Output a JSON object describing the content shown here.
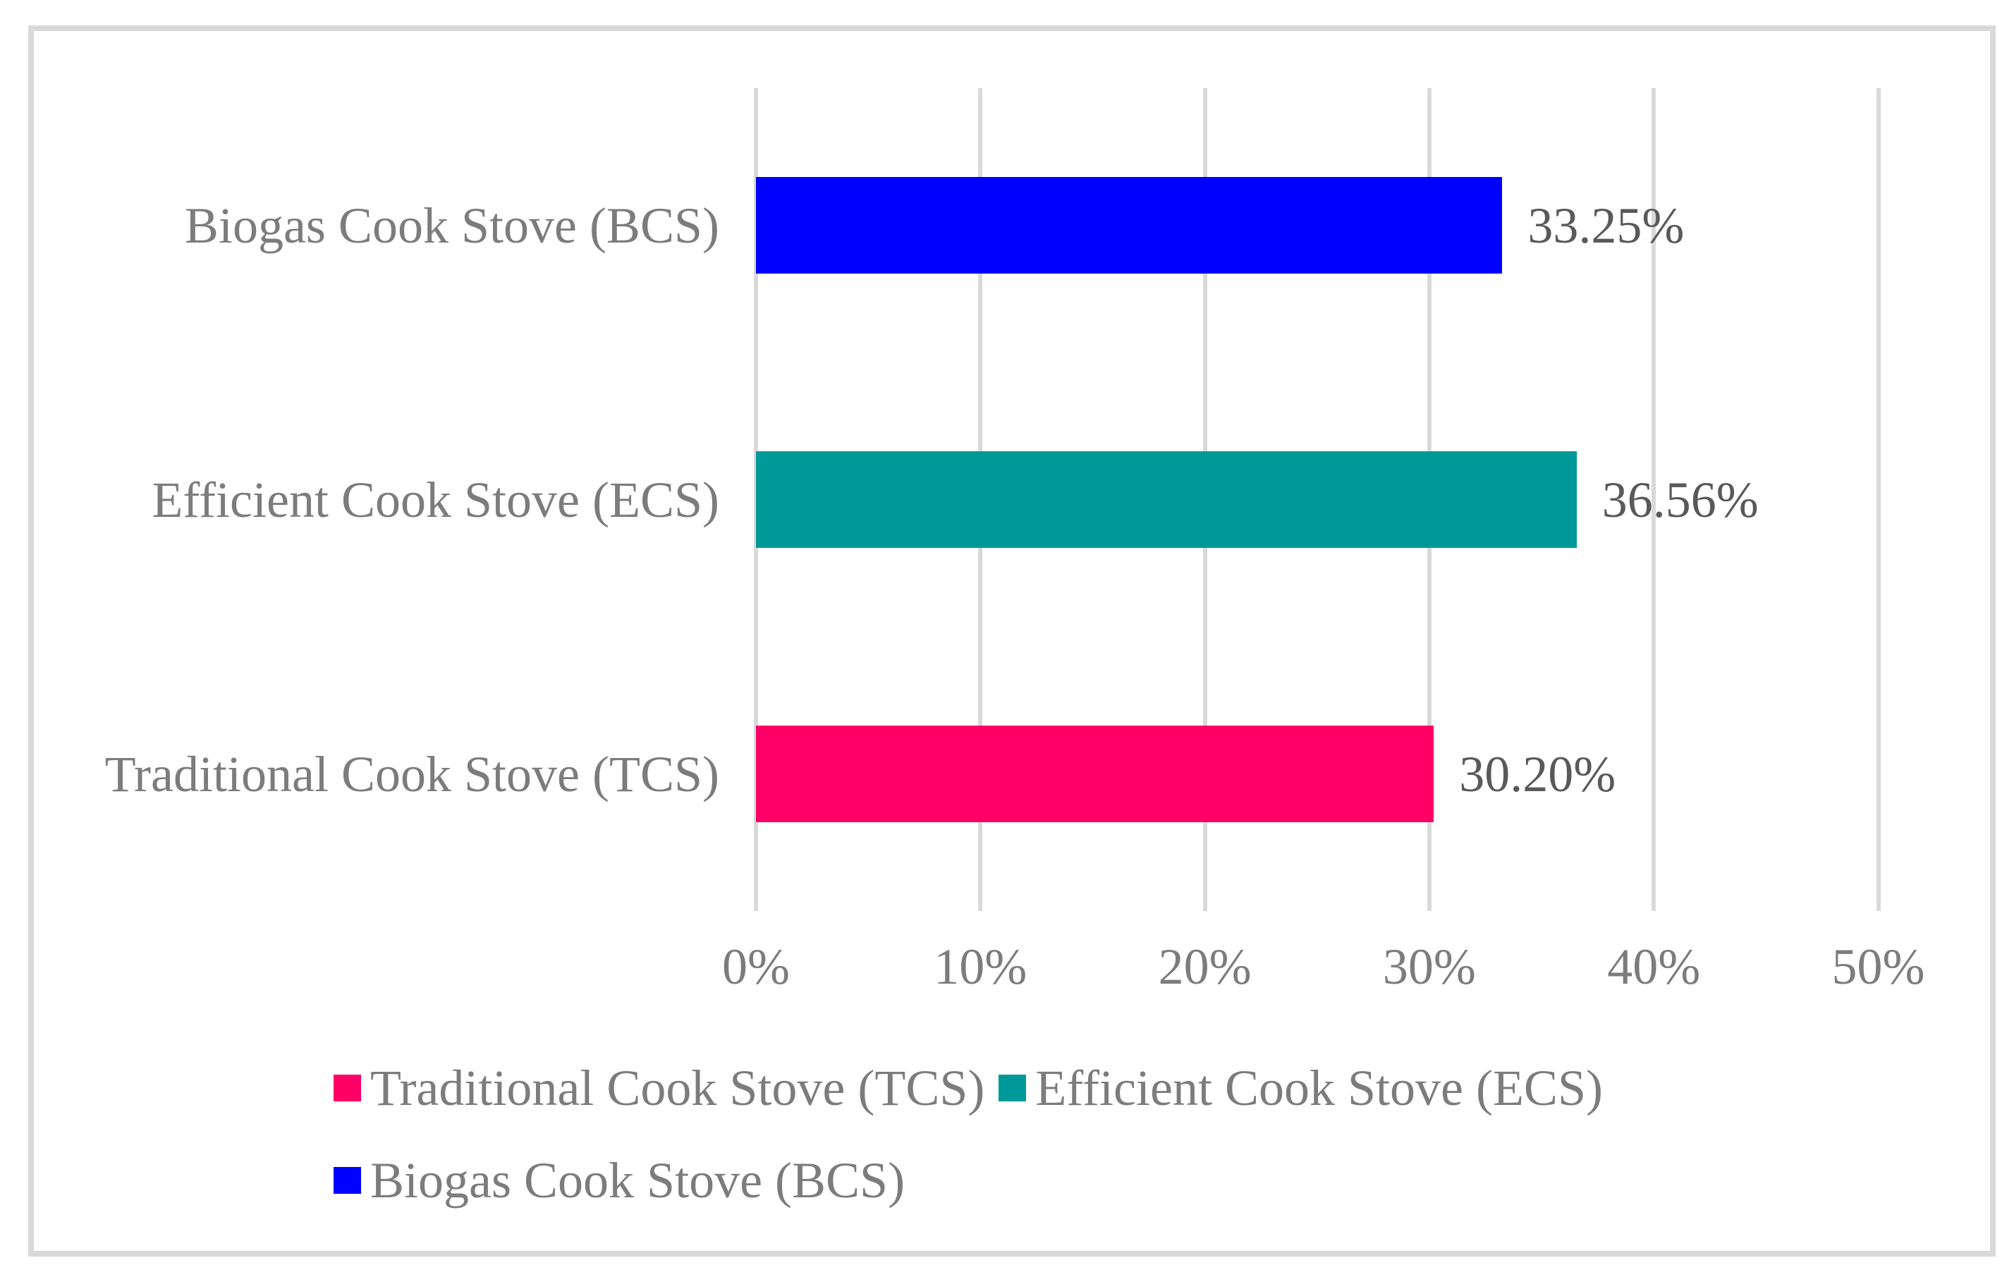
{
  "chart_data": {
    "type": "bar",
    "orientation": "horizontal",
    "title": "",
    "xlabel": "",
    "ylabel": "",
    "categories": [
      "Biogas Cook Stove (BCS)",
      "Efficient Cook Stove (ECS)",
      "Traditional Cook Stove (TCS)"
    ],
    "values": [
      33.25,
      36.56,
      30.2
    ],
    "value_labels": [
      "33.25%",
      "36.56%",
      "30.20%"
    ],
    "bar_colors": [
      "#0000FF",
      "#009999",
      "#FF0066"
    ],
    "xlim": [
      0,
      50
    ],
    "x_ticks": [
      0,
      10,
      20,
      30,
      40,
      50
    ],
    "x_tick_labels": [
      "0%",
      "10%",
      "20%",
      "30%",
      "40%",
      "50%"
    ],
    "grid": "vertical-major",
    "legend_position": "bottom",
    "legend": {
      "rows": [
        [
          {
            "label": "Traditional Cook Stove (TCS)",
            "color": "#FF0066"
          },
          {
            "label": "Efficient Cook Stove (ECS)",
            "color": "#009999"
          }
        ],
        [
          {
            "label": "Biogas Cook Stove (BCS)",
            "color": "#0000FF"
          }
        ]
      ]
    }
  },
  "styles": {
    "background": "#FFFFFF",
    "frame_border_color": "#D9D9D9",
    "grid_color": "#D9D9D9",
    "category_label_color": "#7C7C7C",
    "tick_label_color": "#7C7C7C",
    "value_label_color": "#595959",
    "legend_label_color": "#7C7C7C"
  }
}
